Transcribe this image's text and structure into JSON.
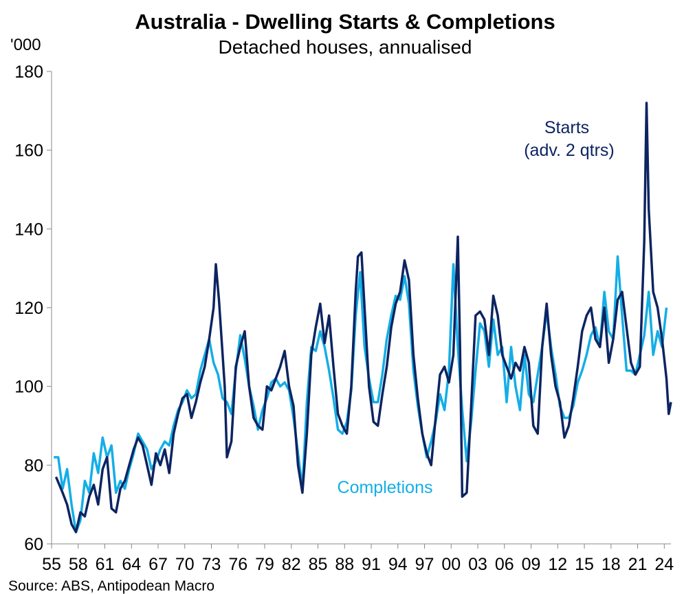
{
  "chart_data": {
    "type": "line",
    "title": "Australia - Dwelling Starts & Completions",
    "subtitle": "Detached houses, annualised",
    "ylabel": "'000",
    "ylim": [
      60,
      180
    ],
    "yticks": [
      "60",
      "80",
      "100",
      "120",
      "140",
      "160",
      "180"
    ],
    "xlim": [
      1955,
      2024.75
    ],
    "x_tick_labels": [
      "55",
      "58",
      "61",
      "64",
      "67",
      "70",
      "73",
      "76",
      "79",
      "82",
      "85",
      "88",
      "91",
      "94",
      "97",
      "00",
      "03",
      "06",
      "09",
      "12",
      "15",
      "18",
      "21",
      "24"
    ],
    "source": "Source: ABS, Antipodean Macro",
    "colors": {
      "starts": "#0d2461",
      "completions": "#14aee6"
    },
    "series": [
      {
        "name": "Starts",
        "annotation": [
          "Starts",
          "(adv. 2 qtrs)"
        ],
        "points": [
          [
            1955.5,
            77
          ],
          [
            1956.25,
            73
          ],
          [
            1956.75,
            70
          ],
          [
            1957.25,
            65
          ],
          [
            1957.75,
            63
          ],
          [
            1958.25,
            68
          ],
          [
            1958.75,
            67
          ],
          [
            1959.25,
            72
          ],
          [
            1959.75,
            75
          ],
          [
            1960.25,
            70
          ],
          [
            1960.75,
            79
          ],
          [
            1961.25,
            82
          ],
          [
            1961.75,
            69
          ],
          [
            1962.25,
            68
          ],
          [
            1962.75,
            74
          ],
          [
            1963.25,
            76
          ],
          [
            1963.75,
            80
          ],
          [
            1964.25,
            84
          ],
          [
            1964.75,
            87
          ],
          [
            1965.25,
            85
          ],
          [
            1965.75,
            80
          ],
          [
            1966.25,
            75
          ],
          [
            1966.75,
            83
          ],
          [
            1967.25,
            80
          ],
          [
            1967.75,
            84
          ],
          [
            1968.25,
            78
          ],
          [
            1968.75,
            88
          ],
          [
            1969.25,
            93
          ],
          [
            1969.75,
            97
          ],
          [
            1970.25,
            98
          ],
          [
            1970.75,
            92
          ],
          [
            1971.25,
            96
          ],
          [
            1971.75,
            101
          ],
          [
            1972.25,
            105
          ],
          [
            1972.75,
            112
          ],
          [
            1973.25,
            120
          ],
          [
            1973.5,
            131
          ],
          [
            1973.85,
            122
          ],
          [
            1974.5,
            100
          ],
          [
            1974.75,
            82
          ],
          [
            1975.25,
            86
          ],
          [
            1975.75,
            105
          ],
          [
            1976.25,
            110
          ],
          [
            1976.75,
            114
          ],
          [
            1977.25,
            100
          ],
          [
            1977.75,
            92
          ],
          [
            1978.25,
            90
          ],
          [
            1978.75,
            89
          ],
          [
            1979.25,
            100
          ],
          [
            1979.75,
            99
          ],
          [
            1980.25,
            102
          ],
          [
            1980.75,
            105
          ],
          [
            1981.25,
            109
          ],
          [
            1981.75,
            100
          ],
          [
            1982.25,
            95
          ],
          [
            1982.75,
            80
          ],
          [
            1983.25,
            73
          ],
          [
            1983.75,
            88
          ],
          [
            1984.25,
            108
          ],
          [
            1984.75,
            115
          ],
          [
            1985.25,
            121
          ],
          [
            1985.75,
            111
          ],
          [
            1986.25,
            118
          ],
          [
            1986.75,
            105
          ],
          [
            1987.25,
            93
          ],
          [
            1987.75,
            90
          ],
          [
            1988.25,
            88
          ],
          [
            1988.75,
            100
          ],
          [
            1989.25,
            124
          ],
          [
            1989.5,
            133
          ],
          [
            1989.9,
            134
          ],
          [
            1990.25,
            120
          ],
          [
            1990.75,
            100
          ],
          [
            1991.25,
            91
          ],
          [
            1991.75,
            90
          ],
          [
            1992.25,
            98
          ],
          [
            1992.75,
            105
          ],
          [
            1993.25,
            115
          ],
          [
            1993.75,
            121
          ],
          [
            1994.25,
            124
          ],
          [
            1994.75,
            132
          ],
          [
            1995.25,
            127
          ],
          [
            1995.75,
            108
          ],
          [
            1996.25,
            97
          ],
          [
            1996.75,
            88
          ],
          [
            1997.25,
            83
          ],
          [
            1997.75,
            80
          ],
          [
            1998.25,
            92
          ],
          [
            1998.75,
            103
          ],
          [
            1999.25,
            105
          ],
          [
            1999.75,
            101
          ],
          [
            2000.25,
            108
          ],
          [
            2000.75,
            138
          ],
          [
            2001.0,
            110
          ],
          [
            2001.25,
            72
          ],
          [
            2001.75,
            73
          ],
          [
            2002.25,
            95
          ],
          [
            2002.75,
            118
          ],
          [
            2003.25,
            119
          ],
          [
            2003.75,
            117
          ],
          [
            2004.25,
            108
          ],
          [
            2004.75,
            123
          ],
          [
            2005.25,
            118
          ],
          [
            2005.75,
            108
          ],
          [
            2006.25,
            105
          ],
          [
            2006.75,
            102
          ],
          [
            2007.25,
            106
          ],
          [
            2007.75,
            104
          ],
          [
            2008.25,
            110
          ],
          [
            2008.75,
            106
          ],
          [
            2009.25,
            90
          ],
          [
            2009.75,
            88
          ],
          [
            2010.25,
            110
          ],
          [
            2010.75,
            121
          ],
          [
            2011.25,
            108
          ],
          [
            2011.75,
            100
          ],
          [
            2012.25,
            96
          ],
          [
            2012.75,
            87
          ],
          [
            2013.25,
            90
          ],
          [
            2013.75,
            97
          ],
          [
            2014.25,
            105
          ],
          [
            2014.75,
            114
          ],
          [
            2015.25,
            118
          ],
          [
            2015.75,
            120
          ],
          [
            2016.25,
            112
          ],
          [
            2016.75,
            110
          ],
          [
            2017.25,
            120
          ],
          [
            2017.75,
            106
          ],
          [
            2018.25,
            112
          ],
          [
            2018.75,
            122
          ],
          [
            2019.25,
            124
          ],
          [
            2019.75,
            115
          ],
          [
            2020.25,
            106
          ],
          [
            2020.75,
            103
          ],
          [
            2021.25,
            105
          ],
          [
            2021.75,
            137
          ],
          [
            2022.0,
            172
          ],
          [
            2022.25,
            145
          ],
          [
            2022.75,
            124
          ],
          [
            2023.25,
            120
          ],
          [
            2023.75,
            112
          ],
          [
            2024.25,
            102
          ],
          [
            2024.5,
            93
          ],
          [
            2024.75,
            96
          ]
        ]
      },
      {
        "name": "Completions",
        "annotation": [
          "Completions"
        ],
        "points": [
          [
            1955.25,
            82
          ],
          [
            1955.75,
            82
          ],
          [
            1956.25,
            74
          ],
          [
            1956.75,
            79
          ],
          [
            1957.25,
            70
          ],
          [
            1957.75,
            63
          ],
          [
            1958.25,
            66
          ],
          [
            1958.75,
            76
          ],
          [
            1959.25,
            73
          ],
          [
            1959.75,
            83
          ],
          [
            1960.25,
            78
          ],
          [
            1960.75,
            87
          ],
          [
            1961.25,
            82
          ],
          [
            1961.75,
            85
          ],
          [
            1962.25,
            73
          ],
          [
            1962.75,
            76
          ],
          [
            1963.25,
            74
          ],
          [
            1963.75,
            79
          ],
          [
            1964.25,
            83
          ],
          [
            1964.75,
            88
          ],
          [
            1965.25,
            86
          ],
          [
            1965.75,
            84
          ],
          [
            1966.25,
            79
          ],
          [
            1966.75,
            81
          ],
          [
            1967.25,
            84
          ],
          [
            1967.75,
            86
          ],
          [
            1968.25,
            85
          ],
          [
            1968.75,
            90
          ],
          [
            1969.25,
            94
          ],
          [
            1969.75,
            96
          ],
          [
            1970.25,
            99
          ],
          [
            1970.75,
            97
          ],
          [
            1971.25,
            98
          ],
          [
            1971.75,
            104
          ],
          [
            1972.25,
            108
          ],
          [
            1972.75,
            112
          ],
          [
            1973.25,
            106
          ],
          [
            1973.75,
            103
          ],
          [
            1974.25,
            97
          ],
          [
            1974.75,
            96
          ],
          [
            1975.25,
            93
          ],
          [
            1975.75,
            104
          ],
          [
            1976.25,
            113
          ],
          [
            1976.75,
            107
          ],
          [
            1977.25,
            100
          ],
          [
            1977.75,
            95
          ],
          [
            1978.25,
            89
          ],
          [
            1978.75,
            94
          ],
          [
            1979.25,
            97
          ],
          [
            1979.75,
            101
          ],
          [
            1980.25,
            102
          ],
          [
            1980.75,
            100
          ],
          [
            1981.25,
            101
          ],
          [
            1981.75,
            99
          ],
          [
            1982.25,
            92
          ],
          [
            1982.75,
            83
          ],
          [
            1983.25,
            74
          ],
          [
            1983.75,
            96
          ],
          [
            1984.25,
            110
          ],
          [
            1984.75,
            109
          ],
          [
            1985.25,
            114
          ],
          [
            1985.75,
            110
          ],
          [
            1986.25,
            104
          ],
          [
            1986.75,
            97
          ],
          [
            1987.25,
            89
          ],
          [
            1987.75,
            88
          ],
          [
            1988.25,
            91
          ],
          [
            1988.75,
            99
          ],
          [
            1989.25,
            118
          ],
          [
            1989.75,
            129
          ],
          [
            1990.25,
            110
          ],
          [
            1990.75,
            102
          ],
          [
            1991.25,
            96
          ],
          [
            1991.75,
            96
          ],
          [
            1992.25,
            103
          ],
          [
            1992.75,
            112
          ],
          [
            1993.25,
            118
          ],
          [
            1993.75,
            123
          ],
          [
            1994.25,
            122
          ],
          [
            1994.75,
            128
          ],
          [
            1995.25,
            121
          ],
          [
            1995.75,
            104
          ],
          [
            1996.25,
            95
          ],
          [
            1996.75,
            88
          ],
          [
            1997.25,
            82
          ],
          [
            1997.75,
            86
          ],
          [
            1998.25,
            91
          ],
          [
            1998.75,
            98
          ],
          [
            1999.25,
            94
          ],
          [
            1999.75,
            104
          ],
          [
            2000.25,
            131
          ],
          [
            2000.75,
            110
          ],
          [
            2001.25,
            94
          ],
          [
            2001.75,
            81
          ],
          [
            2002.25,
            91
          ],
          [
            2002.75,
            104
          ],
          [
            2003.25,
            116
          ],
          [
            2003.75,
            114
          ],
          [
            2004.25,
            105
          ],
          [
            2004.75,
            117
          ],
          [
            2005.25,
            108
          ],
          [
            2005.75,
            110
          ],
          [
            2006.25,
            96
          ],
          [
            2006.75,
            110
          ],
          [
            2007.25,
            100
          ],
          [
            2007.75,
            94
          ],
          [
            2008.25,
            108
          ],
          [
            2008.75,
            98
          ],
          [
            2009.25,
            96
          ],
          [
            2009.75,
            103
          ],
          [
            2010.25,
            110
          ],
          [
            2010.75,
            119
          ],
          [
            2011.25,
            110
          ],
          [
            2011.75,
            103
          ],
          [
            2012.25,
            95
          ],
          [
            2012.75,
            92
          ],
          [
            2013.25,
            92
          ],
          [
            2013.75,
            95
          ],
          [
            2014.25,
            101
          ],
          [
            2014.75,
            104
          ],
          [
            2015.25,
            108
          ],
          [
            2015.75,
            113
          ],
          [
            2016.25,
            115
          ],
          [
            2016.75,
            110
          ],
          [
            2017.25,
            124
          ],
          [
            2017.75,
            114
          ],
          [
            2018.25,
            112
          ],
          [
            2018.75,
            133
          ],
          [
            2019.25,
            118
          ],
          [
            2019.75,
            104
          ],
          [
            2020.25,
            104
          ],
          [
            2020.75,
            103
          ],
          [
            2021.25,
            108
          ],
          [
            2021.75,
            113
          ],
          [
            2022.25,
            124
          ],
          [
            2022.75,
            108
          ],
          [
            2023.25,
            114
          ],
          [
            2023.75,
            110
          ],
          [
            2024.25,
            120
          ]
        ]
      }
    ]
  }
}
